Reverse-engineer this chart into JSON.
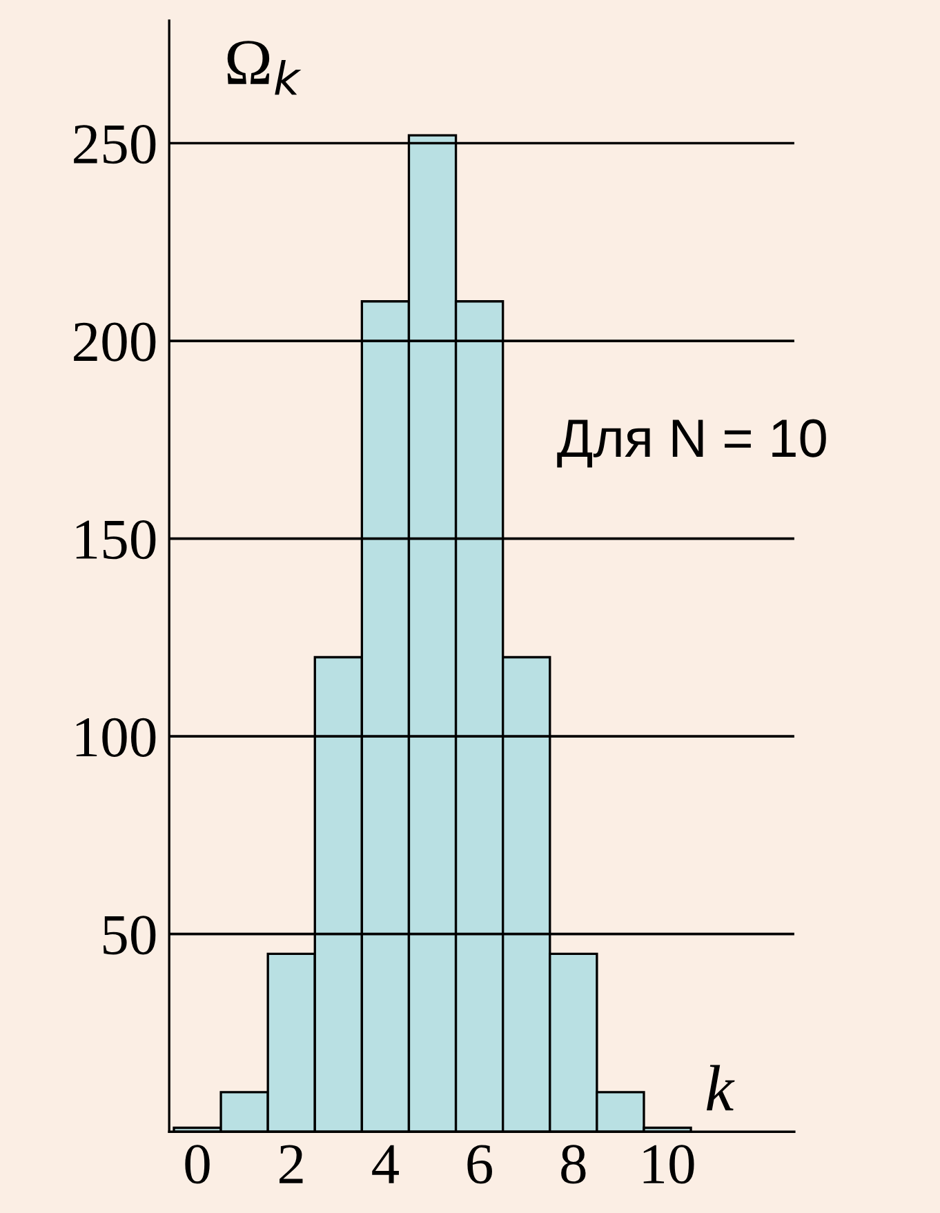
{
  "chart_data": {
    "type": "histogram",
    "bins": [
      -0.5,
      0.5,
      1.5,
      2.5,
      3.5,
      4.5,
      5.5,
      6.5,
      7.5,
      8.5,
      9.5,
      10.5
    ],
    "values": [
      1,
      10,
      45,
      120,
      210,
      252,
      210,
      120,
      45,
      10,
      1
    ],
    "color": "#b9e0e3",
    "xlabel": "k",
    "ylabel": "Ω$_{k}$",
    "annotations": [
      "Для N = 10"
    ],
    "xlim": [
      -0.6,
      12.7
    ],
    "xticks": [
      0,
      2,
      4,
      6,
      8,
      10
    ],
    "ylim": [
      0,
      281
    ],
    "yticks": [
      50,
      100,
      150,
      200,
      250
    ],
    "grid": "y",
    "legend": false
  }
}
